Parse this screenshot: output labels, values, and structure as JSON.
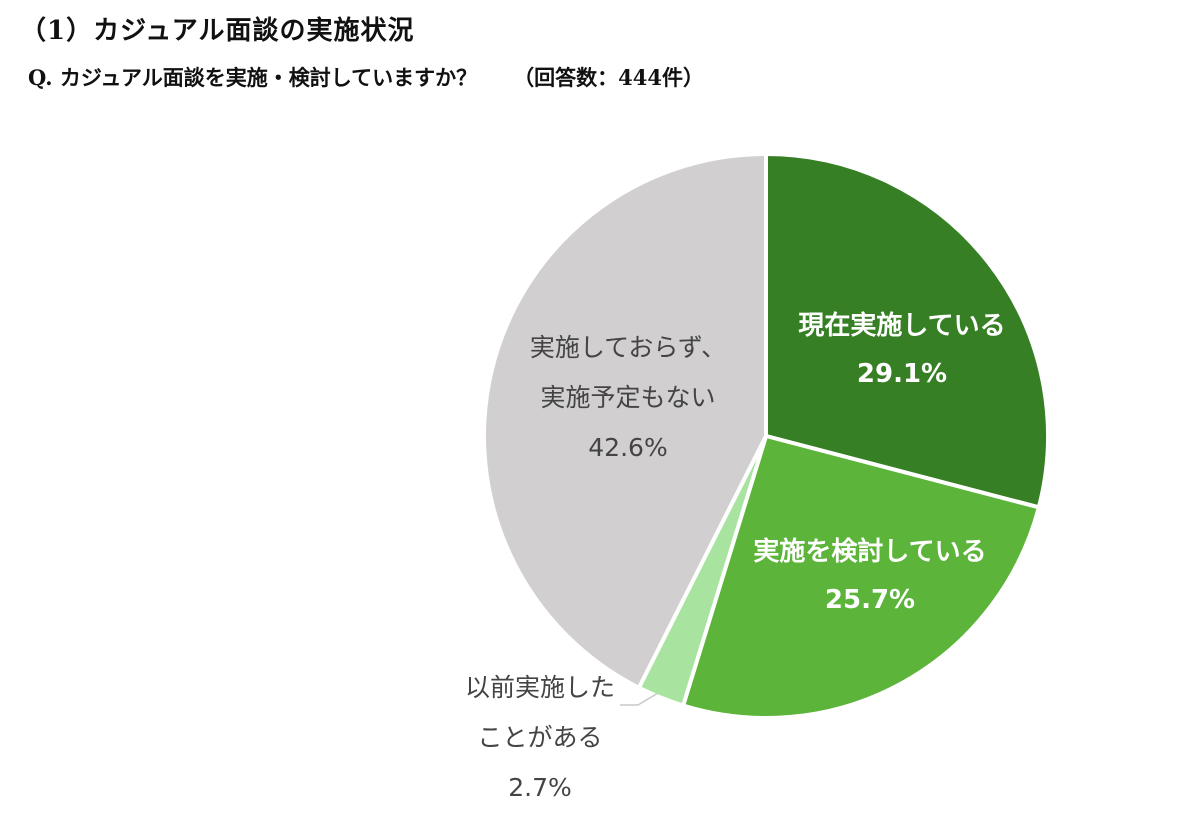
{
  "section_title": "（1）カジュアル面談の実施状況",
  "question": "Q. カジュアル面談を実施・検討していますか？",
  "response_count": "（回答数：444件）",
  "chart_data": {
    "type": "pie",
    "start": "12 o'clock",
    "direction": "clockwise",
    "slices": [
      {
        "label_lines": [
          "現在実施している"
        ],
        "value": 29.1,
        "value_text": "29.1%",
        "color": "#367f24",
        "text_color": "#ffffff",
        "label_placement": "inside"
      },
      {
        "label_lines": [
          "実施を検討している"
        ],
        "value": 25.7,
        "value_text": "25.7%",
        "color": "#5cb43a",
        "text_color": "#ffffff",
        "label_placement": "inside"
      },
      {
        "label_lines": [
          "以前実施した",
          "ことがある"
        ],
        "value": 2.7,
        "value_text": "2.7%",
        "color": "#a9e3a0",
        "text_color": "#444444",
        "label_placement": "outside"
      },
      {
        "label_lines": [
          "実施しておらず、",
          "実施予定もない"
        ],
        "value": 42.6,
        "value_text": "42.6%",
        "color": "#d1cfd0",
        "text_color": "#444444",
        "label_placement": "inside"
      }
    ]
  }
}
